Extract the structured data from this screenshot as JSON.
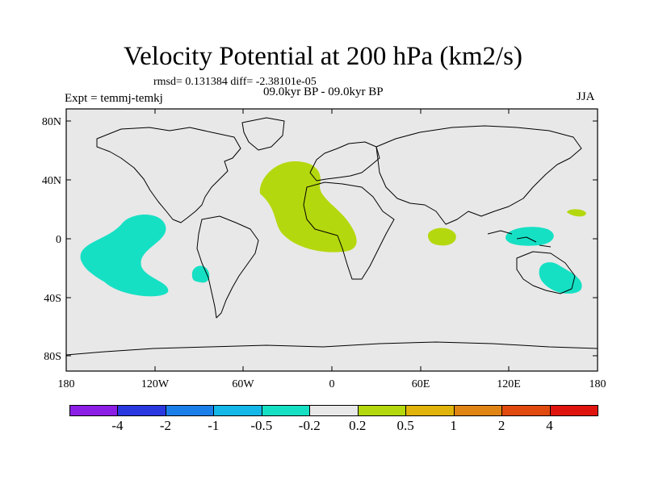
{
  "figure": {
    "title": "Velocity Potential at 200 hPa (km2/s)",
    "stats": "rmsd= 0.131384 diff= -2.38101e-05",
    "experiment": "Expt = temmj-temkj",
    "period": "09.0kyr BP - 09.0kyr BP",
    "season": "JJA"
  },
  "map": {
    "lat_ticks": [
      "80N",
      "40N",
      "0",
      "40S",
      "80S"
    ],
    "lon_ticks": [
      "180",
      "120W",
      "60W",
      "0",
      "60E",
      "120E",
      "180"
    ],
    "background_color": "#e8e8e8",
    "ocean_land_line_color": "#000000"
  },
  "colorbar": {
    "colors": [
      "#8c1ee6",
      "#2a38e0",
      "#1a7fe8",
      "#14b8e8",
      "#16e0c4",
      "#e8e8e8",
      "#b4d80e",
      "#e0b40a",
      "#e08414",
      "#e04a0e",
      "#e0140e"
    ],
    "labels": [
      "-4",
      "-2",
      "-1",
      "-0.5",
      "-0.2",
      "0.2",
      "0.5",
      "1",
      "2",
      "4"
    ]
  }
}
